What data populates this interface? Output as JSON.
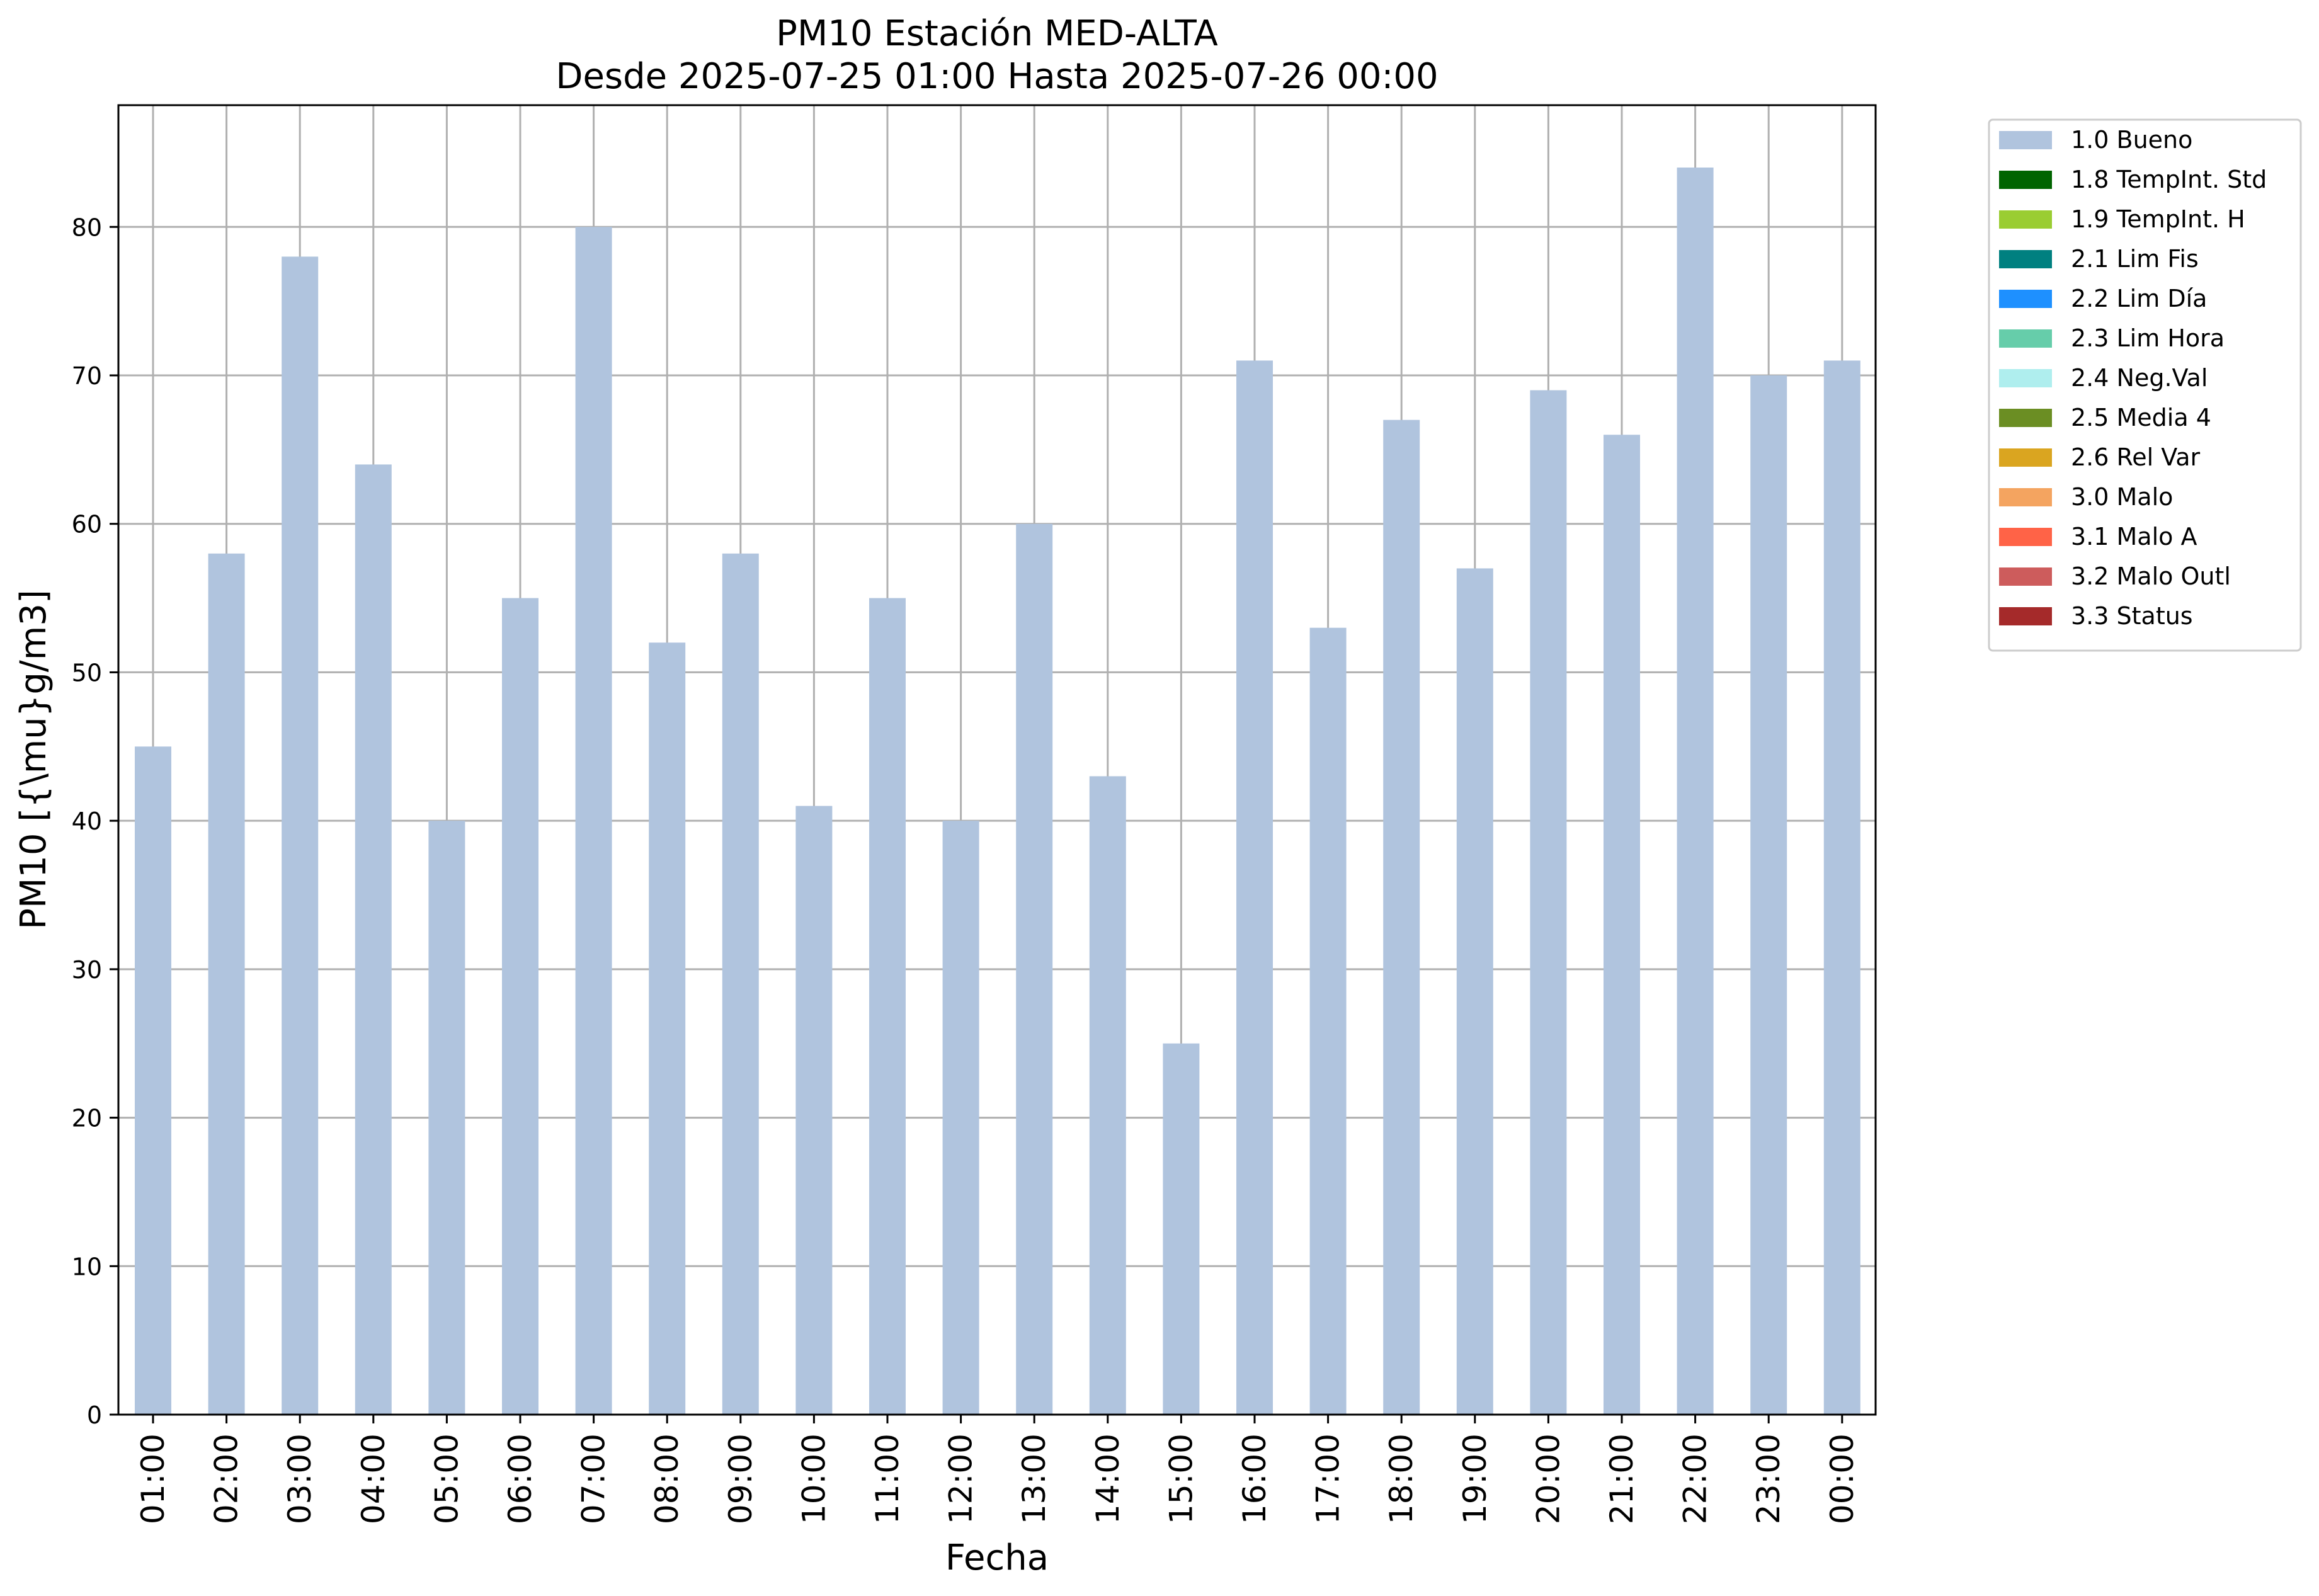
{
  "chart_data": {
    "type": "bar",
    "title": "PM10 Estación MED-ALTA",
    "subtitle": "Desde 2025-07-25 01:00 Hasta 2025-07-26 00:00",
    "xlabel": "Fecha",
    "ylabel": "PM10 [{\\mu}g/m3]",
    "categories": [
      "01:00",
      "02:00",
      "03:00",
      "04:00",
      "05:00",
      "06:00",
      "07:00",
      "08:00",
      "09:00",
      "10:00",
      "11:00",
      "12:00",
      "13:00",
      "14:00",
      "15:00",
      "16:00",
      "17:00",
      "18:00",
      "19:00",
      "20:00",
      "21:00",
      "22:00",
      "23:00",
      "00:00"
    ],
    "series": [
      {
        "name": "1.0 Bueno",
        "color": "#b0c4de",
        "values": [
          45,
          58,
          78,
          64,
          40,
          55,
          80,
          52,
          58,
          41,
          55,
          40,
          60,
          43,
          25,
          71,
          53,
          67,
          57,
          69,
          66,
          84,
          70,
          71
        ]
      }
    ],
    "ylim": [
      0,
      88.2
    ],
    "yticks": [
      0,
      10,
      20,
      30,
      40,
      50,
      60,
      70,
      80
    ],
    "grid": true,
    "legend_position": "outside-top-right",
    "legend": [
      {
        "label": "1.0 Bueno",
        "color": "#b0c4de"
      },
      {
        "label": "1.8 TempInt. Std",
        "color": "#006400"
      },
      {
        "label": "1.9 TempInt. H",
        "color": "#9acd32"
      },
      {
        "label": "2.1 Lim Fis",
        "color": "#008080"
      },
      {
        "label": "2.2 Lim Día",
        "color": "#1e90ff"
      },
      {
        "label": "2.3 Lim Hora",
        "color": "#66cdaa"
      },
      {
        "label": "2.4 Neg.Val",
        "color": "#afeeee"
      },
      {
        "label": "2.5 Media 4",
        "color": "#6b8e23"
      },
      {
        "label": "2.6 Rel Var",
        "color": "#daa520"
      },
      {
        "label": "3.0 Malo",
        "color": "#f4a460"
      },
      {
        "label": "3.1 Malo A",
        "color": "#ff6347"
      },
      {
        "label": "3.2 Malo Outl",
        "color": "#cd5c5c"
      },
      {
        "label": "3.3 Status",
        "color": "#a52a2a"
      }
    ]
  }
}
